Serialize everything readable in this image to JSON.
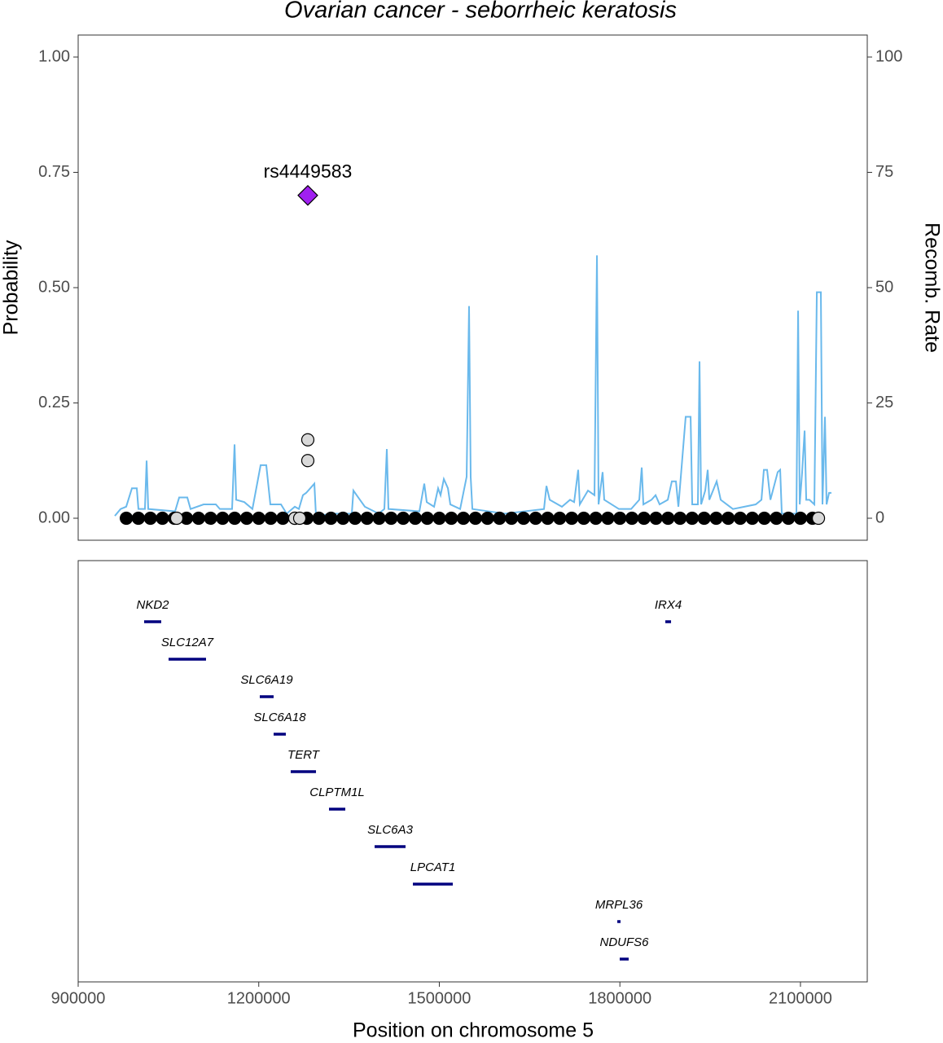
{
  "chart_data": [
    {
      "type": "locus",
      "title": "Ovarian cancer - seborrheic keratosis",
      "ylabel": "Probability",
      "y2label": "Recomb. Rate",
      "xlim": [
        900000,
        2211000
      ],
      "ylim": [
        -0.0477,
        1.0477
      ],
      "yticks": [
        {
          "value": 0,
          "label": "0.00"
        },
        {
          "value": 0.25,
          "label": "0.25"
        },
        {
          "value": 0.5,
          "label": "0.50"
        },
        {
          "value": 0.75,
          "label": "0.75"
        },
        {
          "value": 1,
          "label": "1.00"
        }
      ],
      "y2lim": [
        -4.77,
        104.77
      ],
      "y2ticks": [
        0,
        25,
        50,
        75,
        100
      ],
      "series": [
        {
          "type": "scatter",
          "color": "#000000",
          "x": [
            980000,
            1000000,
            1020000,
            1040000,
            1060000,
            1080000,
            1100000,
            1120000,
            1140000,
            1160000,
            1180000,
            1200000,
            1220000,
            1240000,
            1260000,
            1280000,
            1300000,
            1320000,
            1340000,
            1360000,
            1380000,
            1400000,
            1420000,
            1440000,
            1460000,
            1480000,
            1500000,
            1520000,
            1540000,
            1560000,
            1580000,
            1600000,
            1620000,
            1640000,
            1660000,
            1680000,
            1700000,
            1720000,
            1740000,
            1760000,
            1780000,
            1800000,
            1820000,
            1840000,
            1860000,
            1880000,
            1900000,
            1920000,
            1940000,
            1960000,
            1980000,
            2000000,
            2020000,
            2040000,
            2060000,
            2080000,
            2100000,
            2120000
          ],
          "values": [
            0,
            0,
            0,
            0,
            0,
            0,
            0,
            0,
            0,
            0,
            0,
            0,
            0,
            0,
            0,
            0,
            0,
            0,
            0,
            0,
            0,
            0,
            0,
            0,
            0,
            0,
            0,
            0,
            0,
            0,
            0,
            0,
            0,
            0,
            0,
            0,
            0,
            0,
            0,
            0,
            0,
            0,
            0,
            0,
            0,
            0,
            0,
            0,
            0,
            0,
            0,
            0,
            0,
            0,
            0,
            0,
            0,
            0
          ]
        },
        {
          "type": "scatter",
          "color": "#d9d9d9",
          "x": [
            1063700,
            1259900,
            1268000,
            1281500,
            1281500,
            2129900
          ],
          "values": [
            0,
            0,
            0,
            0.17,
            0.125,
            0
          ]
        },
        {
          "type": "scatter",
          "marker": "diamond",
          "color": "#a020f0",
          "label": "rs4449583",
          "x": [
            1281500
          ],
          "values": [
            0.7
          ]
        },
        {
          "type": "line",
          "axis": "y2",
          "color": "#6ab9ec",
          "x": [
            960900,
            970400,
            979800,
            989300,
            997400,
            1000100,
            1010900,
            1013700,
            1016400,
            1061000,
            1067800,
            1081300,
            1086700,
            1108400,
            1128700,
            1135400,
            1155700,
            1159800,
            1162500,
            1176000,
            1189500,
            1203100,
            1212500,
            1219300,
            1236900,
            1246400,
            1259900,
            1266700,
            1273400,
            1278800,
            1292400,
            1295100,
            1324800,
            1354600,
            1357300,
            1365400,
            1376300,
            1399300,
            1408700,
            1412800,
            1415500,
            1466900,
            1475000,
            1479100,
            1491300,
            1498000,
            1502100,
            1507500,
            1514300,
            1518300,
            1534600,
            1545400,
            1549400,
            1552100,
            1554900,
            1609000,
            1673900,
            1678000,
            1683400,
            1703700,
            1717200,
            1724000,
            1730700,
            1733400,
            1747000,
            1757800,
            1761900,
            1764600,
            1771300,
            1774000,
            1798400,
            1818700,
            1832200,
            1836300,
            1839000,
            1852500,
            1859300,
            1866000,
            1879600,
            1886300,
            1893100,
            1897200,
            1909300,
            1917500,
            1920200,
            1929600,
            1932300,
            1935000,
            1941800,
            1945900,
            1948600,
            1960800,
            1967500,
            1987800,
            2025700,
            2035200,
            2039200,
            2044600,
            2050100,
            2062200,
            2066300,
            2069000,
            2093300,
            2096100,
            2098800,
            2102800,
            2106900,
            2109600,
            2115000,
            2123100,
            2127200,
            2133900,
            2136600,
            2140700,
            2143400,
            2147500,
            2151500
          ],
          "values": [
            0.5,
            2,
            2.5,
            6.5,
            6.5,
            2,
            2,
            12.5,
            2,
            1.5,
            4.5,
            4.5,
            2,
            3,
            3,
            2,
            2,
            16,
            4,
            3.5,
            2,
            11.5,
            11.5,
            3,
            3,
            1,
            2.5,
            2,
            5,
            5.5,
            7.5,
            0.5,
            1,
            1,
            6,
            4.5,
            2.5,
            1,
            2,
            15,
            2,
            1.5,
            7.5,
            3.5,
            2.5,
            6.5,
            5,
            8.5,
            6.5,
            3,
            2,
            9,
            46,
            9,
            2,
            1,
            2,
            7,
            4,
            2.5,
            4,
            3.5,
            10.5,
            3,
            6,
            5,
            57,
            3,
            10,
            4,
            2,
            2,
            4,
            11,
            3,
            4,
            5,
            3,
            4,
            8,
            8,
            2.5,
            22,
            22,
            3,
            3,
            34,
            3,
            6,
            10.5,
            4,
            8,
            4,
            2,
            3,
            4,
            10.5,
            10.5,
            4,
            10,
            10.5,
            1,
            1,
            45,
            3,
            10,
            19,
            4,
            4,
            3,
            49,
            49,
            3,
            22,
            3,
            5.5,
            5.5
          ]
        }
      ]
    },
    {
      "type": "genes",
      "xlabel": "Position on chromosome 5",
      "xlim": [
        900000,
        2211000
      ],
      "xticks": [
        900000,
        1200000,
        1500000,
        1800000,
        2100000
      ],
      "color": "#00007f",
      "genes": [
        {
          "name": "NKD2",
          "start": 1009600,
          "end": 1038000
        },
        {
          "name": "SLC12A7",
          "start": 1050200,
          "end": 1112400
        },
        {
          "name": "SLC6A19",
          "start": 1201700,
          "end": 1224700
        },
        {
          "name": "SLC6A18",
          "start": 1224700,
          "end": 1245000
        },
        {
          "name": "TERT",
          "start": 1253100,
          "end": 1295100
        },
        {
          "name": "CLPTM1L",
          "start": 1316700,
          "end": 1343800
        },
        {
          "name": "SLC6A3",
          "start": 1392500,
          "end": 1443900
        },
        {
          "name": "LPCAT1",
          "start": 1456100,
          "end": 1522400
        },
        {
          "name": "MRPL36",
          "start": 1795700,
          "end": 1801100
        },
        {
          "name": "NDUFS6",
          "start": 1799700,
          "end": 1814600
        },
        {
          "name": "IRX4",
          "start": 1875500,
          "end": 1885000
        }
      ]
    }
  ]
}
